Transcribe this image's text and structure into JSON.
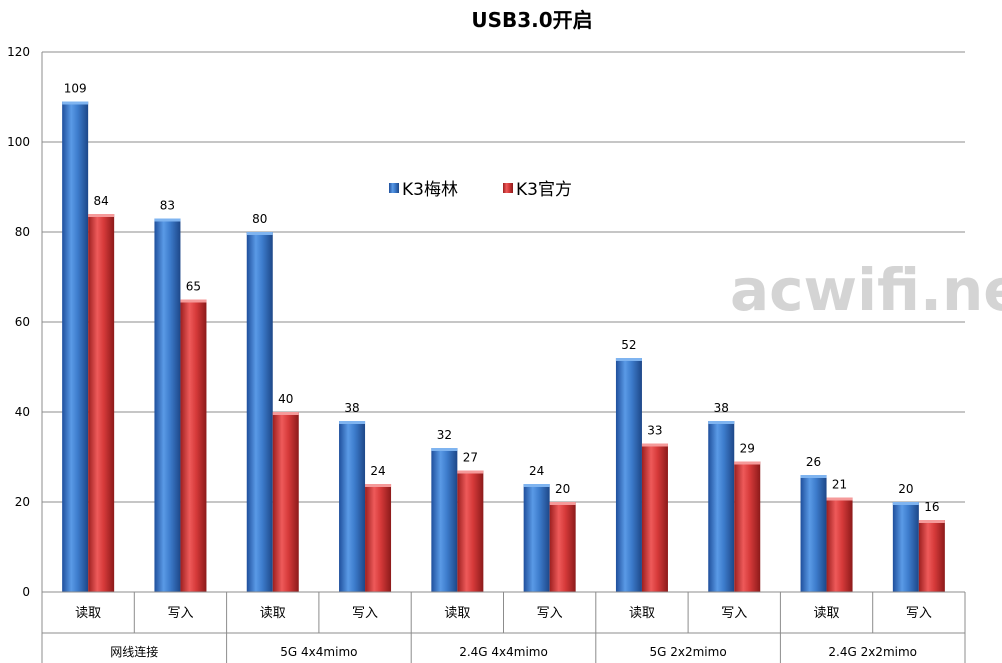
{
  "chart_data": {
    "type": "bar",
    "title": "USB3.0开启",
    "xlabel": "",
    "ylabel": "",
    "ylim": [
      0,
      120
    ],
    "yticks": [
      0,
      20,
      40,
      60,
      80,
      100,
      120
    ],
    "grid": true,
    "legend_position": "top-center",
    "groups": [
      "网线连接",
      "5G 4x4mimo",
      "2.4G 4x4mimo",
      "5G 2x2mimo",
      "2.4G 2x2mimo"
    ],
    "categories": [
      "读取",
      "写入",
      "读取",
      "写入",
      "读取",
      "写入",
      "读取",
      "写入",
      "读取",
      "写入"
    ],
    "series": [
      {
        "name": "K3梅林",
        "color": "#3d7ccc",
        "values": [
          109,
          83,
          80,
          38,
          32,
          24,
          52,
          38,
          26,
          20
        ]
      },
      {
        "name": "K3官方",
        "color": "#d63a3a",
        "values": [
          84,
          65,
          40,
          24,
          27,
          20,
          33,
          29,
          21,
          16
        ]
      }
    ]
  },
  "watermark": "acwifi.net"
}
